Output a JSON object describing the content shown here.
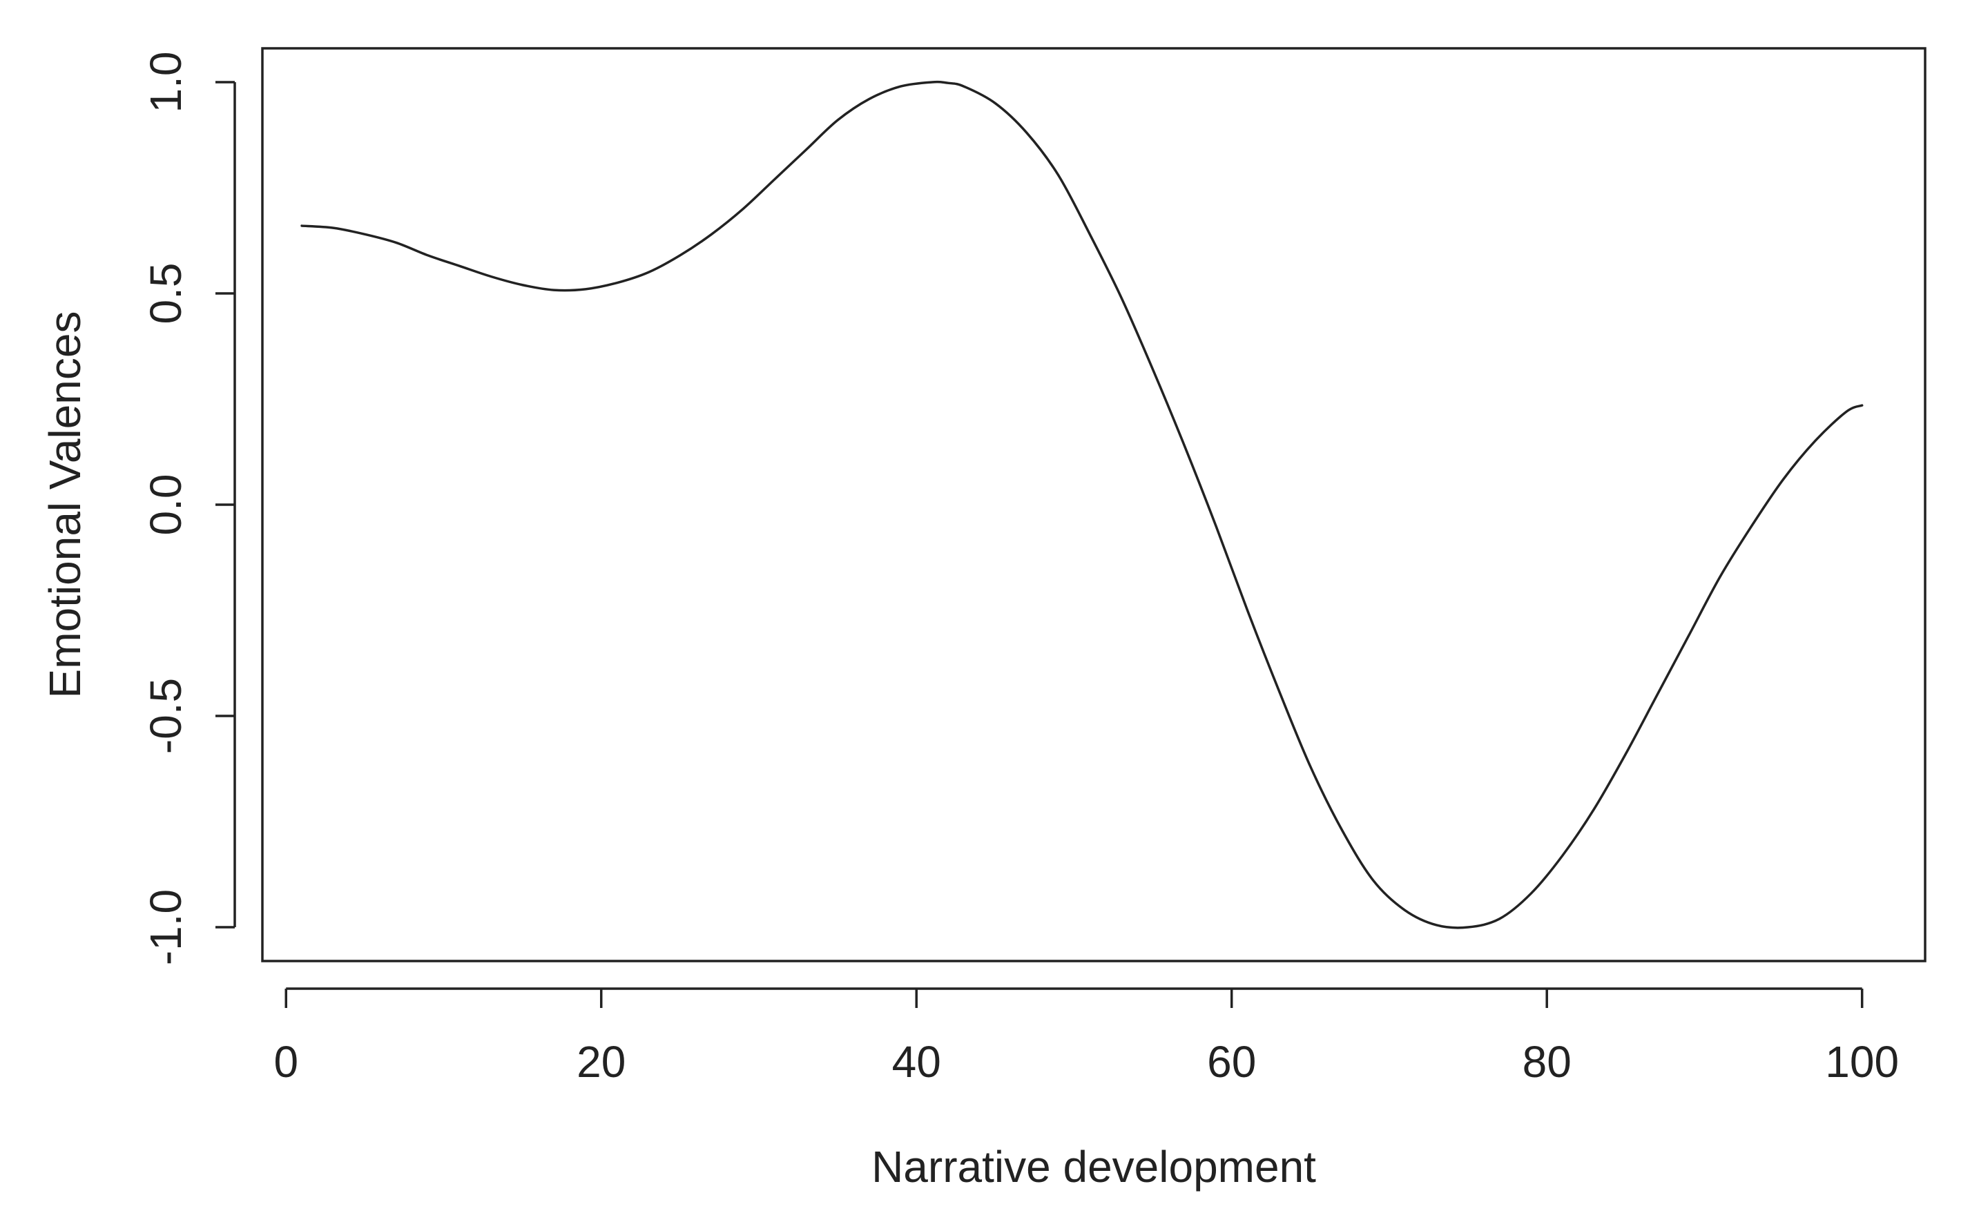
{
  "chart_data": {
    "type": "line",
    "title": "",
    "xlabel": "Narrative development",
    "ylabel": "Emotional Valences",
    "xlim": [
      -1.5,
      104
    ],
    "ylim": [
      -1.08,
      1.08
    ],
    "x_ticks": [
      0,
      20,
      40,
      60,
      80,
      100
    ],
    "y_ticks": [
      -1.0,
      -0.5,
      0.0,
      0.5,
      1.0
    ],
    "x_tick_labels": [
      "0",
      "20",
      "40",
      "60",
      "80",
      "100"
    ],
    "y_tick_labels": [
      "-1.0",
      "-0.5",
      "0.0",
      "0.5",
      "1.0"
    ],
    "grid": false,
    "legend": "none",
    "line_color": "#222222",
    "series": [
      {
        "x": [
          1,
          3,
          5,
          7,
          9,
          11,
          13,
          15,
          17,
          19,
          21,
          23,
          25,
          27,
          29,
          31,
          33,
          35,
          37,
          39,
          41,
          42,
          43,
          45,
          47,
          49,
          51,
          53,
          55,
          57,
          59,
          61,
          63,
          65,
          67,
          69,
          71,
          73,
          75,
          77,
          79,
          81,
          83,
          85,
          87,
          89,
          91,
          93,
          95,
          97,
          99,
          100
        ],
        "y": [
          0.66,
          0.655,
          0.64,
          0.62,
          0.59,
          0.565,
          0.54,
          0.52,
          0.508,
          0.51,
          0.525,
          0.55,
          0.59,
          0.64,
          0.7,
          0.77,
          0.84,
          0.91,
          0.96,
          0.99,
          1.0,
          0.998,
          0.99,
          0.95,
          0.88,
          0.78,
          0.64,
          0.49,
          0.32,
          0.14,
          -0.05,
          -0.25,
          -0.44,
          -0.62,
          -0.77,
          -0.89,
          -0.96,
          -0.995,
          -1.0,
          -0.98,
          -0.92,
          -0.83,
          -0.72,
          -0.59,
          -0.45,
          -0.31,
          -0.17,
          -0.05,
          0.06,
          0.15,
          0.22,
          0.235
        ]
      }
    ]
  }
}
